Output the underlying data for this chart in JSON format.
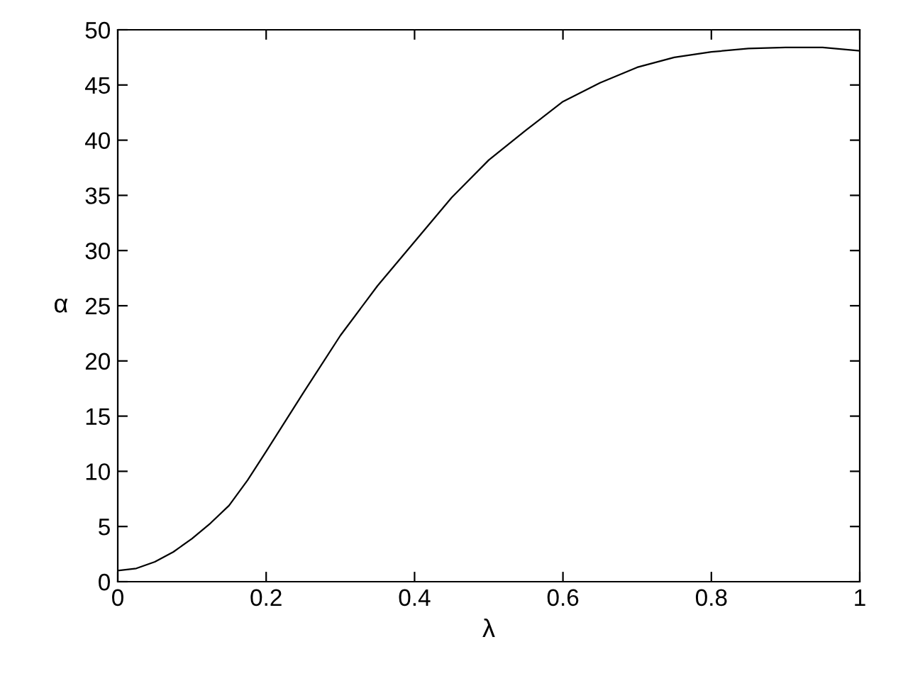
{
  "chart_data": {
    "type": "line",
    "xlabel": "λ",
    "ylabel": "α",
    "xlim": [
      0,
      1
    ],
    "ylim": [
      0,
      50
    ],
    "xticks": [
      0,
      0.2,
      0.4,
      0.6,
      0.8,
      1
    ],
    "yticks": [
      0,
      5,
      10,
      15,
      20,
      25,
      30,
      35,
      40,
      45,
      50
    ],
    "grid": false,
    "marker": "none",
    "line_style": "solid",
    "series": [
      {
        "color": "#000000",
        "x": [
          0,
          0.025,
          0.05,
          0.075,
          0.1,
          0.125,
          0.15,
          0.175,
          0.2,
          0.25,
          0.3,
          0.35,
          0.4,
          0.45,
          0.5,
          0.55,
          0.6,
          0.65,
          0.7,
          0.75,
          0.8,
          0.85,
          0.9,
          0.95,
          1
        ],
        "values": [
          1.0,
          1.2,
          1.8,
          2.7,
          3.9,
          5.3,
          6.9,
          9.2,
          11.8,
          17.1,
          22.3,
          26.8,
          30.8,
          34.8,
          38.2,
          40.9,
          43.5,
          45.2,
          46.6,
          47.5,
          48.0,
          48.3,
          48.4,
          48.4,
          48.1
        ]
      }
    ]
  }
}
